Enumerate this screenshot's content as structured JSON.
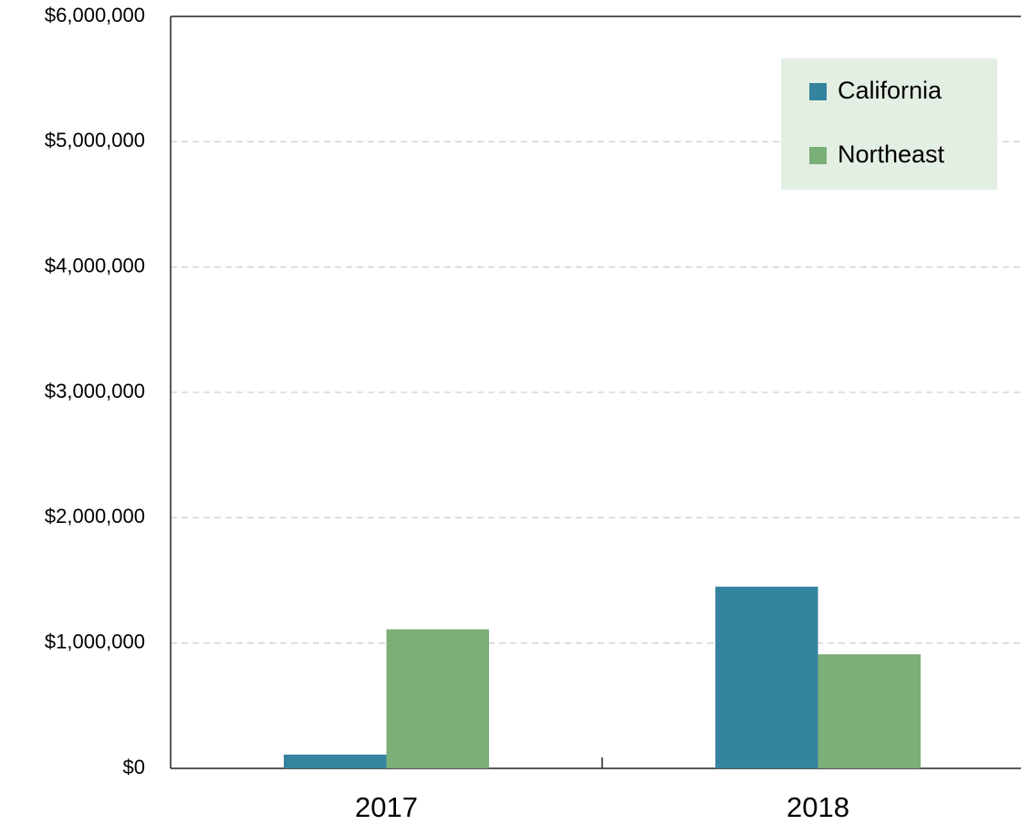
{
  "chart_data": {
    "type": "bar",
    "categories": [
      "2017",
      "2018"
    ],
    "series": [
      {
        "name": "California",
        "color": "#35849f",
        "values": [
          110000,
          1450000
        ]
      },
      {
        "name": "Northeast",
        "color": "#7aaf78",
        "values": [
          1110000,
          910000
        ]
      }
    ],
    "ylim": [
      0,
      6000000
    ],
    "yticks": [
      {
        "value": 0,
        "label": "$0"
      },
      {
        "value": 1000000,
        "label": "$1,000,000"
      },
      {
        "value": 2000000,
        "label": "$2,000,000"
      },
      {
        "value": 3000000,
        "label": "$3,000,000"
      },
      {
        "value": 4000000,
        "label": "$4,000,000"
      },
      {
        "value": 5000000,
        "label": "$5,000,000"
      },
      {
        "value": 6000000,
        "label": "$6,000,000"
      }
    ],
    "grid": true,
    "legend": "upper right"
  }
}
